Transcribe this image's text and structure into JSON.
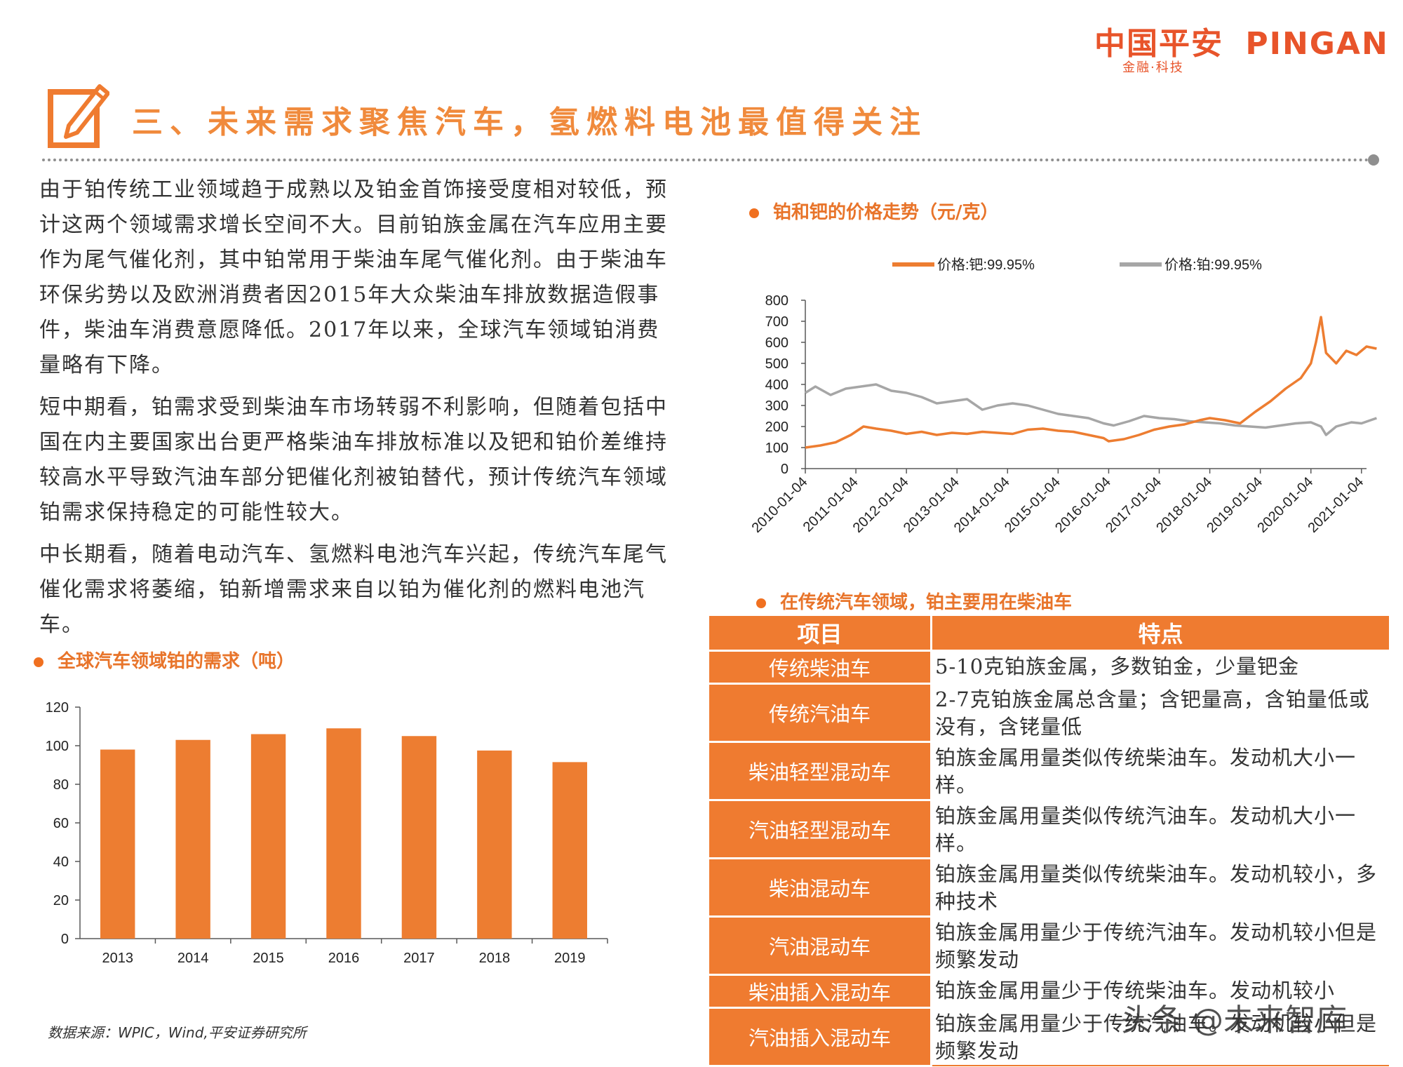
{
  "header": {
    "logo_cn": "中国平安",
    "logo_en": "PINGAN",
    "logo_tagline": "金融·科技",
    "brand_color": "#e8542a"
  },
  "title": {
    "icon": "pencil-edit-icon",
    "text": "三、未来需求聚焦汽车，氢燃料电池最值得关注"
  },
  "body": {
    "paragraphs": [
      "由于铂传统工业领域趋于成熟以及铂金首饰接受度相对较低，预计这两个领域需求增长空间不大。目前铂族金属在汽车应用主要作为尾气催化剂，其中铂常用于柴油车尾气催化剂。由于柴油车环保劣势以及欧洲消费者因2015年大众柴油车排放数据造假事件，柴油车消费意愿降低。2017年以来，全球汽车领域铂消费量略有下降。",
      "短中期看，铂需求受到柴油车市场转弱不利影响，但随着包括中国在内主要国家出台更严格柴油车排放标准以及钯和铂价差维持较高水平导致汽油车部分钯催化剂被铂替代，预计传统汽车领域铂需求保持稳定的可能性较大。",
      "中长期看，随着电动汽车、氢燃料电池汽车兴起，传统汽车尾气催化需求将萎缩，铂新增需求来自以铂为催化剂的燃料电池汽车。"
    ]
  },
  "section_bar": {
    "title": "全球汽车领域铂的需求（吨）"
  },
  "section_line": {
    "title": "铂和钯的价格走势（元/克）"
  },
  "section_table": {
    "title": "在传统汽车领域，铂主要用在柴油车"
  },
  "chart_data": [
    {
      "type": "bar",
      "categories": [
        "2013",
        "2014",
        "2015",
        "2016",
        "2017",
        "2018",
        "2019"
      ],
      "values": [
        98,
        103,
        106,
        109,
        105,
        97.5,
        91.5
      ],
      "ylim": [
        0,
        120
      ],
      "yticks": [
        "0",
        "20",
        "40",
        "60",
        "80",
        "100",
        "120"
      ],
      "color": "#ed7d31",
      "grid": false
    },
    {
      "type": "line",
      "x_ticks": [
        "2010-01-04",
        "2011-01-04",
        "2012-01-04",
        "2013-01-04",
        "2014-01-04",
        "2015-01-04",
        "2016-01-04",
        "2017-01-04",
        "2018-01-04",
        "2019-01-04",
        "2020-01-04",
        "2021-01-04"
      ],
      "ylim": [
        0,
        800
      ],
      "yticks": [
        "0",
        "100",
        "200",
        "300",
        "400",
        "500",
        "600",
        "700",
        "800"
      ],
      "legend_position": "top",
      "series": [
        {
          "name": "价格:钯:99.95%",
          "color": "#ed7d31",
          "x": [
            2010.0,
            2010.3,
            2010.6,
            2010.9,
            2011.15,
            2011.4,
            2011.7,
            2012.0,
            2012.3,
            2012.6,
            2012.9,
            2013.2,
            2013.5,
            2013.8,
            2014.1,
            2014.4,
            2014.7,
            2015.0,
            2015.3,
            2015.6,
            2015.9,
            2016.0,
            2016.3,
            2016.6,
            2016.9,
            2017.2,
            2017.5,
            2017.8,
            2018.0,
            2018.3,
            2018.6,
            2018.9,
            2019.2,
            2019.5,
            2019.8,
            2020.0,
            2020.1,
            2020.2,
            2020.3,
            2020.5,
            2020.7,
            2020.9,
            2021.1,
            2021.3
          ],
          "values": [
            100,
            110,
            125,
            160,
            200,
            190,
            180,
            165,
            175,
            160,
            170,
            165,
            175,
            170,
            165,
            185,
            190,
            180,
            175,
            160,
            145,
            130,
            140,
            160,
            185,
            200,
            210,
            230,
            240,
            230,
            215,
            270,
            320,
            380,
            430,
            500,
            600,
            720,
            550,
            500,
            560,
            540,
            580,
            570
          ]
        },
        {
          "name": "价格:铂:99.95%",
          "color": "#a6a6a6",
          "x": [
            2010.0,
            2010.2,
            2010.5,
            2010.8,
            2011.1,
            2011.4,
            2011.7,
            2012.0,
            2012.3,
            2012.6,
            2012.9,
            2013.2,
            2013.5,
            2013.8,
            2014.1,
            2014.4,
            2014.7,
            2015.0,
            2015.3,
            2015.6,
            2015.9,
            2016.1,
            2016.4,
            2016.7,
            2017.0,
            2017.3,
            2017.6,
            2017.9,
            2018.2,
            2018.5,
            2018.8,
            2019.1,
            2019.4,
            2019.7,
            2020.0,
            2020.2,
            2020.3,
            2020.5,
            2020.8,
            2021.0,
            2021.3
          ],
          "values": [
            360,
            390,
            350,
            380,
            390,
            400,
            370,
            360,
            340,
            310,
            320,
            330,
            280,
            300,
            310,
            300,
            280,
            260,
            250,
            240,
            215,
            205,
            225,
            250,
            240,
            235,
            225,
            220,
            215,
            205,
            200,
            195,
            205,
            215,
            220,
            200,
            160,
            200,
            220,
            215,
            240
          ]
        }
      ]
    }
  ],
  "table": {
    "headers": [
      "项目",
      "特点"
    ],
    "rows": [
      {
        "item": "传统柴油车",
        "feature": "5-10克铂族金属，多数铂金，少量钯金"
      },
      {
        "item": "传统汽油车",
        "feature": "2-7克铂族金属总含量；含钯量高，含铂量低或没有，含铑量低"
      },
      {
        "item": "柴油轻型混动车",
        "feature": "铂族金属用量类似传统柴油车。发动机大小一样。"
      },
      {
        "item": "汽油轻型混动车",
        "feature": "铂族金属用量类似传统汽油车。发动机大小一样。"
      },
      {
        "item": "柴油混动车",
        "feature": "铂族金属用量类似传统柴油车。发动机较小，多种技术"
      },
      {
        "item": "汽油混动车",
        "feature": "铂族金属用量少于传统汽油车。发动机较小但是频繁发动"
      },
      {
        "item": "柴油插入混动车",
        "feature": "铂族金属用量少于传统柴油车。发动机较小"
      },
      {
        "item": "汽油插入混动车",
        "feature": "铂族金属用量少于传统汽油车。发动机较小但是频繁发动"
      }
    ]
  },
  "footer": {
    "source": "数据来源：WPIC，Wind,平安证券研究所",
    "watermark": "头条 @未来智库"
  }
}
